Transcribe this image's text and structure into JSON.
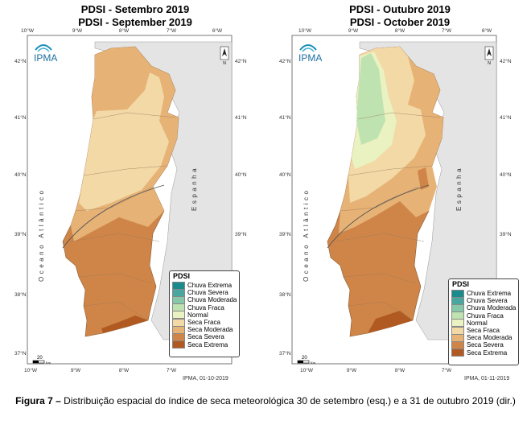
{
  "maps": [
    {
      "title_pt": "PDSI - Setembro 2019",
      "title_en": "PDSI - September 2019",
      "credit": "IPMA, 01-10-2019"
    },
    {
      "title_pt": "PDSI - Outubro 2019",
      "title_en": "PDSI - October 2019",
      "credit": "IPMA, 01-11-2019"
    }
  ],
  "logo_text": "IPMA",
  "ocean_label": "Oceano Atlântico",
  "spain_label": "Espanha",
  "north_symbol": "N",
  "scale_value": "20",
  "scale_unit": "Km",
  "lon_ticks": [
    "10°W",
    "9°W",
    "8°W",
    "7°W",
    "6°W"
  ],
  "lat_ticks": [
    "42°N",
    "41°N",
    "40°N",
    "39°N",
    "38°N",
    "37°N"
  ],
  "legend": {
    "title": "PDSI",
    "classes": [
      {
        "label": "Chuva Extrema",
        "color": "#1b8a8c"
      },
      {
        "label": "Chuva Severa",
        "color": "#4aa7a0"
      },
      {
        "label": "Chuva Moderada",
        "color": "#86c8a8"
      },
      {
        "label": "Chuva Fraca",
        "color": "#bfe3b0"
      },
      {
        "label": "Normal",
        "color": "#e9f2c0"
      },
      {
        "label": "Seca Fraca",
        "color": "#f2d9a6"
      },
      {
        "label": "Seca Moderada",
        "color": "#e6b275"
      },
      {
        "label": "Seca Severa",
        "color": "#cf8548"
      },
      {
        "label": "Seca Extrema",
        "color": "#b05a22"
      }
    ]
  },
  "colors": {
    "sea": "#ffffff",
    "spain": "#e4e4e4",
    "border": "#6b6b6b"
  },
  "caption": {
    "label": "Figura 7 –",
    "text": " Distribuição espacial do índice de seca meteorológica 30 de setembro (esq.) e a 31 de outubro 2019 (dir.)"
  }
}
